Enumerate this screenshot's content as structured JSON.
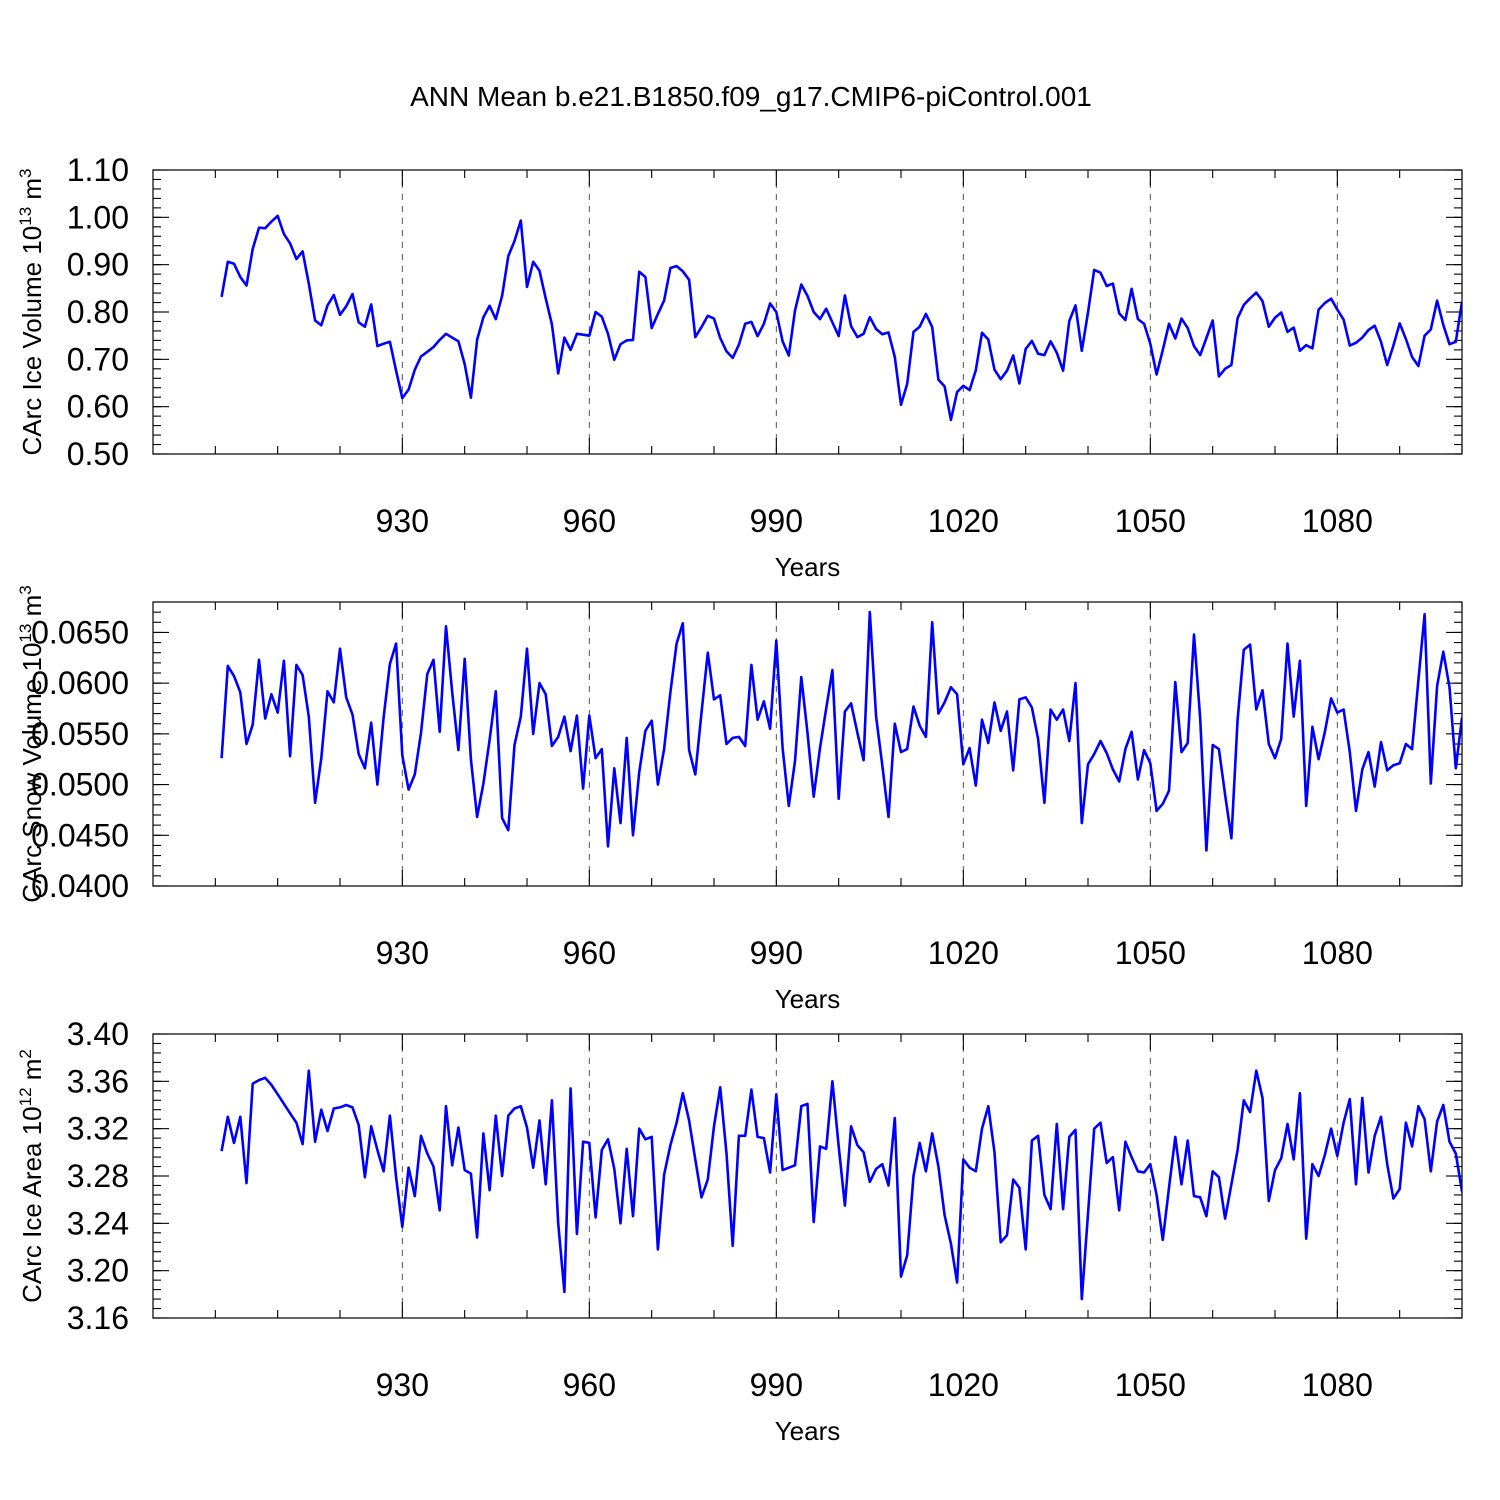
{
  "title": "ANN Mean b.e21.B1850.f09_g17.CMIP6-piControl.001",
  "colors": {
    "series": "#0000ff"
  },
  "chart_data": [
    {
      "type": "line",
      "ylabel": "CArc Ice Volume 10",
      "ylabel_sup": "13",
      "ylabel_unit": " m",
      "ylabel_unit_sup": "3",
      "xlabel": "Years",
      "xlim": [
        901,
        1100
      ],
      "ylim": [
        0.5,
        1.1
      ],
      "xticks": [
        930,
        960,
        990,
        1020,
        1050,
        1080
      ],
      "yticks": [
        0.5,
        0.6,
        0.7,
        0.8,
        0.9,
        1.0,
        1.1
      ],
      "yticklabels": [
        "0.50",
        "0.60",
        "0.70",
        "0.80",
        "0.90",
        "1.00",
        "1.10"
      ],
      "grid": "vertical dashed at x ticks",
      "series": [
        {
          "color": "#0000ff",
          "x_start": 901,
          "x_step": 1,
          "values": [
            0.832,
            0.906,
            0.902,
            0.874,
            0.856,
            0.933,
            0.978,
            0.977,
            0.991,
            1.003,
            0.965,
            0.945,
            0.912,
            0.928,
            0.86,
            0.782,
            0.772,
            0.814,
            0.836,
            0.794,
            0.812,
            0.838,
            0.778,
            0.769,
            0.816,
            0.728,
            0.733,
            0.737,
            0.676,
            0.618,
            0.636,
            0.678,
            0.706,
            0.716,
            0.726,
            0.741,
            0.754,
            0.746,
            0.738,
            0.69,
            0.619,
            0.741,
            0.789,
            0.813,
            0.785,
            0.834,
            0.918,
            0.95,
            0.993,
            0.853,
            0.906,
            0.887,
            0.829,
            0.774,
            0.67,
            0.746,
            0.72,
            0.754,
            0.752,
            0.75,
            0.8,
            0.79,
            0.754,
            0.699,
            0.732,
            0.74,
            0.741,
            0.885,
            0.874,
            0.766,
            0.796,
            0.824,
            0.893,
            0.897,
            0.886,
            0.868,
            0.747,
            0.768,
            0.792,
            0.786,
            0.745,
            0.717,
            0.703,
            0.731,
            0.775,
            0.779,
            0.749,
            0.775,
            0.818,
            0.8,
            0.738,
            0.708,
            0.803,
            0.858,
            0.834,
            0.8,
            0.785,
            0.807,
            0.778,
            0.749,
            0.835,
            0.77,
            0.747,
            0.754,
            0.789,
            0.764,
            0.753,
            0.757,
            0.705,
            0.604,
            0.648,
            0.758,
            0.769,
            0.796,
            0.768,
            0.657,
            0.643,
            0.572,
            0.631,
            0.644,
            0.635,
            0.677,
            0.756,
            0.742,
            0.678,
            0.658,
            0.676,
            0.708,
            0.649,
            0.722,
            0.739,
            0.712,
            0.709,
            0.738,
            0.714,
            0.676,
            0.781,
            0.814,
            0.718,
            0.799,
            0.889,
            0.883,
            0.855,
            0.86,
            0.797,
            0.783,
            0.849,
            0.785,
            0.775,
            0.733,
            0.668,
            0.72,
            0.775,
            0.744,
            0.786,
            0.766,
            0.728,
            0.709,
            0.745,
            0.782,
            0.664,
            0.68,
            0.688,
            0.787,
            0.815,
            0.829,
            0.841,
            0.823,
            0.769,
            0.788,
            0.799,
            0.758,
            0.767,
            0.718,
            0.73,
            0.723,
            0.805,
            0.819,
            0.828,
            0.805,
            0.784,
            0.729,
            0.735,
            0.746,
            0.762,
            0.771,
            0.737,
            0.688,
            0.729,
            0.776,
            0.743,
            0.705,
            0.686,
            0.75,
            0.763,
            0.824,
            0.773,
            0.732,
            0.737,
            0.822
          ]
        }
      ]
    },
    {
      "type": "line",
      "ylabel": "CArc Snow Volume 10",
      "ylabel_sup": "13",
      "ylabel_unit": " m",
      "ylabel_unit_sup": "3",
      "xlabel": "Years",
      "xlim": [
        901,
        1100
      ],
      "ylim": [
        0.04,
        0.068
      ],
      "xticks": [
        930,
        960,
        990,
        1020,
        1050,
        1080
      ],
      "yticks": [
        0.04,
        0.045,
        0.05,
        0.055,
        0.06,
        0.065
      ],
      "yticklabels": [
        "0.0400",
        "0.0450",
        "0.0500",
        "0.0550",
        "0.0600",
        "0.0650"
      ],
      "grid": "vertical dashed at x ticks",
      "series": [
        {
          "color": "#0000ff",
          "x_start": 901,
          "x_step": 1,
          "values": [
            0.0526,
            0.0617,
            0.0607,
            0.0591,
            0.054,
            0.0559,
            0.0623,
            0.0565,
            0.0589,
            0.0571,
            0.0622,
            0.0528,
            0.0618,
            0.0608,
            0.0567,
            0.0482,
            0.0526,
            0.0592,
            0.0581,
            0.0634,
            0.0586,
            0.0569,
            0.053,
            0.0516,
            0.0561,
            0.05,
            0.0566,
            0.0619,
            0.0639,
            0.0529,
            0.0495,
            0.051,
            0.0551,
            0.0609,
            0.0623,
            0.0552,
            0.0656,
            0.0591,
            0.0534,
            0.0624,
            0.0525,
            0.0468,
            0.0501,
            0.0544,
            0.0592,
            0.0467,
            0.0455,
            0.0539,
            0.0567,
            0.0634,
            0.055,
            0.06,
            0.0589,
            0.0538,
            0.0547,
            0.0567,
            0.0533,
            0.0568,
            0.0496,
            0.0568,
            0.0526,
            0.0535,
            0.0439,
            0.0516,
            0.0462,
            0.0546,
            0.045,
            0.0512,
            0.0553,
            0.0563,
            0.05,
            0.0535,
            0.0591,
            0.0639,
            0.0659,
            0.0534,
            0.051,
            0.0571,
            0.063,
            0.0584,
            0.0588,
            0.054,
            0.0546,
            0.0547,
            0.0538,
            0.0618,
            0.0564,
            0.0582,
            0.0555,
            0.0642,
            0.0536,
            0.0479,
            0.0523,
            0.0606,
            0.0551,
            0.0488,
            0.0536,
            0.0575,
            0.0613,
            0.0486,
            0.0572,
            0.058,
            0.0551,
            0.0524,
            0.067,
            0.0567,
            0.0519,
            0.0468,
            0.056,
            0.0532,
            0.0535,
            0.0577,
            0.0558,
            0.0547,
            0.066,
            0.057,
            0.0581,
            0.0596,
            0.0589,
            0.052,
            0.0536,
            0.0499,
            0.0564,
            0.0541,
            0.0581,
            0.0553,
            0.0572,
            0.0514,
            0.0584,
            0.0586,
            0.0576,
            0.0545,
            0.0482,
            0.0574,
            0.0564,
            0.0574,
            0.0543,
            0.06,
            0.0462,
            0.052,
            0.053,
            0.0543,
            0.0531,
            0.0515,
            0.0503,
            0.0535,
            0.0552,
            0.0505,
            0.0534,
            0.0521,
            0.0474,
            0.0481,
            0.0494,
            0.0601,
            0.0532,
            0.0541,
            0.0648,
            0.0565,
            0.0435,
            0.0539,
            0.0535,
            0.049,
            0.0447,
            0.0564,
            0.0633,
            0.0638,
            0.0574,
            0.0593,
            0.054,
            0.0526,
            0.0545,
            0.0639,
            0.0567,
            0.0622,
            0.0479,
            0.0557,
            0.0525,
            0.0552,
            0.0585,
            0.0571,
            0.0574,
            0.0532,
            0.0474,
            0.0515,
            0.0532,
            0.0498,
            0.0542,
            0.0514,
            0.0519,
            0.0521,
            0.054,
            0.0535,
            0.0603,
            0.0668,
            0.0501,
            0.0597,
            0.0631,
            0.0596,
            0.0516,
            0.0566
          ]
        }
      ]
    },
    {
      "type": "line",
      "ylabel": "CArc Ice Area 10",
      "ylabel_sup": "12",
      "ylabel_unit": " m",
      "ylabel_unit_sup": "2",
      "xlabel": "Years",
      "xlim": [
        901,
        1100
      ],
      "ylim": [
        3.16,
        3.4
      ],
      "xticks": [
        930,
        960,
        990,
        1020,
        1050,
        1080
      ],
      "yticks": [
        3.16,
        3.2,
        3.24,
        3.28,
        3.32,
        3.36,
        3.4
      ],
      "yticklabels": [
        "3.16",
        "3.20",
        "3.24",
        "3.28",
        "3.32",
        "3.36",
        "3.40"
      ],
      "grid": "vertical dashed at x ticks",
      "series": [
        {
          "color": "#0000ff",
          "x_start": 901,
          "x_step": 1,
          "values": [
            3.301,
            3.33,
            3.308,
            3.33,
            3.274,
            3.358,
            3.361,
            3.363,
            3.357,
            3.349,
            3.341,
            3.333,
            3.325,
            3.307,
            3.369,
            3.309,
            3.336,
            3.318,
            3.337,
            3.338,
            3.34,
            3.338,
            3.323,
            3.279,
            3.322,
            3.302,
            3.284,
            3.331,
            3.279,
            3.237,
            3.287,
            3.263,
            3.314,
            3.299,
            3.288,
            3.251,
            3.339,
            3.289,
            3.321,
            3.285,
            3.282,
            3.228,
            3.316,
            3.268,
            3.331,
            3.28,
            3.331,
            3.337,
            3.339,
            3.321,
            3.287,
            3.327,
            3.273,
            3.344,
            3.24,
            3.182,
            3.354,
            3.231,
            3.309,
            3.308,
            3.245,
            3.302,
            3.311,
            3.286,
            3.24,
            3.303,
            3.246,
            3.32,
            3.311,
            3.313,
            3.218,
            3.281,
            3.306,
            3.325,
            3.35,
            3.327,
            3.294,
            3.262,
            3.277,
            3.322,
            3.355,
            3.299,
            3.221,
            3.314,
            3.314,
            3.353,
            3.313,
            3.312,
            3.283,
            3.349,
            3.285,
            3.287,
            3.289,
            3.339,
            3.341,
            3.241,
            3.305,
            3.303,
            3.36,
            3.305,
            3.255,
            3.322,
            3.306,
            3.3,
            3.275,
            3.286,
            3.29,
            3.272,
            3.329,
            3.195,
            3.213,
            3.28,
            3.308,
            3.284,
            3.316,
            3.288,
            3.247,
            3.223,
            3.19,
            3.294,
            3.287,
            3.284,
            3.32,
            3.339,
            3.3,
            3.224,
            3.23,
            3.277,
            3.27,
            3.218,
            3.31,
            3.314,
            3.264,
            3.252,
            3.324,
            3.252,
            3.313,
            3.319,
            3.176,
            3.248,
            3.32,
            3.325,
            3.291,
            3.296,
            3.251,
            3.309,
            3.296,
            3.284,
            3.283,
            3.29,
            3.264,
            3.226,
            3.27,
            3.313,
            3.273,
            3.31,
            3.263,
            3.262,
            3.246,
            3.284,
            3.279,
            3.244,
            3.273,
            3.302,
            3.344,
            3.334,
            3.369,
            3.346,
            3.259,
            3.285,
            3.295,
            3.324,
            3.294,
            3.35,
            3.227,
            3.29,
            3.28,
            3.298,
            3.32,
            3.297,
            3.325,
            3.345,
            3.273,
            3.346,
            3.283,
            3.314,
            3.33,
            3.29,
            3.261,
            3.269,
            3.325,
            3.305,
            3.339,
            3.328,
            3.284,
            3.326,
            3.34,
            3.309,
            3.299,
            3.267,
            3.312
          ]
        }
      ]
    }
  ]
}
